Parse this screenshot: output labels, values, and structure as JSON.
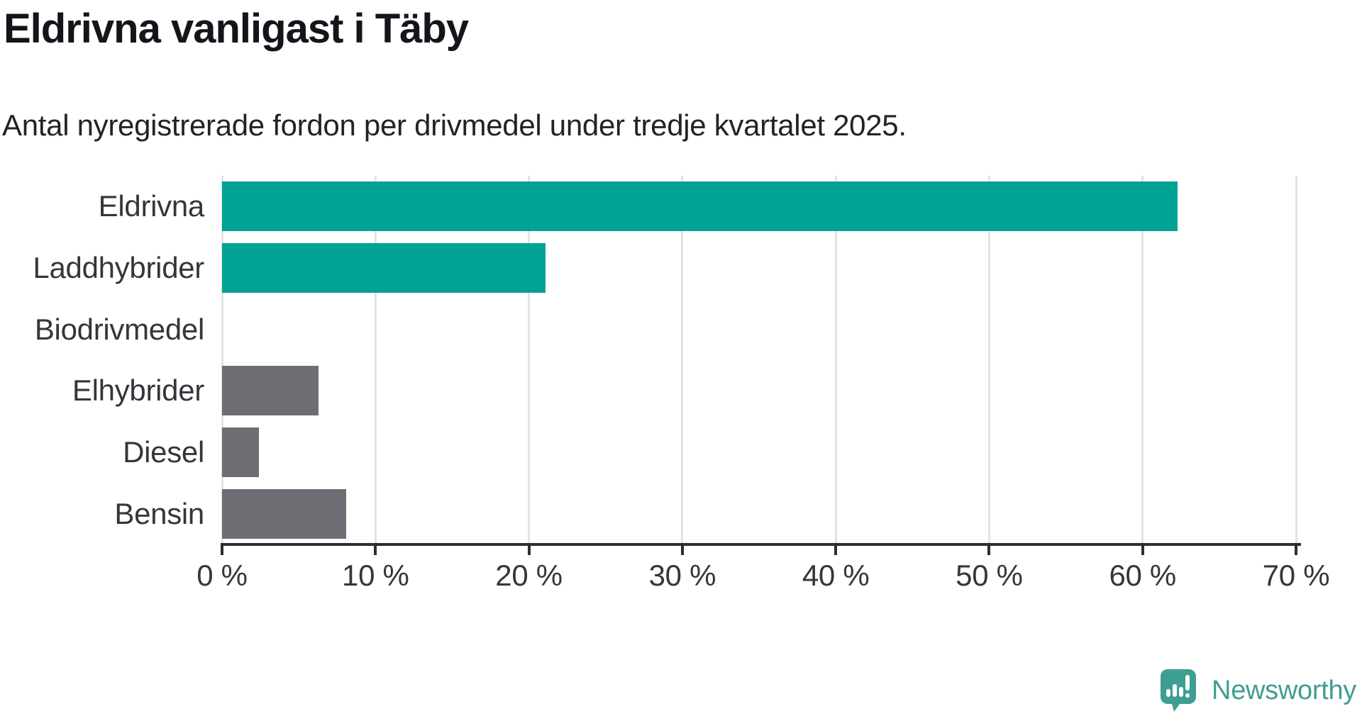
{
  "header": {
    "title": "Eldrivna vanligast i Täby",
    "subtitle": "Antal nyregistrerade fordon per drivmedel under tredje kvartalet 2025."
  },
  "chart_data": {
    "type": "bar",
    "orientation": "horizontal",
    "title": "Eldrivna vanligast i Täby",
    "subtitle": "Antal nyregistrerade fordon per drivmedel under tredje kvartalet 2025.",
    "categories": [
      "Eldrivna",
      "Laddhybrider",
      "Biodrivmedel",
      "Elhybrider",
      "Diesel",
      "Bensin"
    ],
    "values": [
      62.3,
      21.1,
      0,
      6.3,
      2.4,
      8.1
    ],
    "unit": "%",
    "xlim": [
      0,
      70
    ],
    "x_ticks": [
      0,
      10,
      20,
      30,
      40,
      50,
      60,
      70
    ],
    "x_tick_labels": [
      "0 %",
      "10 %",
      "20 %",
      "30 %",
      "40 %",
      "50 %",
      "60 %",
      "70 %"
    ],
    "bar_colors": [
      "#00a296",
      "#00a296",
      "#6d6d73",
      "#6d6d73",
      "#6d6d73",
      "#6d6d73"
    ],
    "grid": true,
    "legend": "none"
  },
  "colors": {
    "accent_teal": "#00a296",
    "neutral_gray": "#6d6d73",
    "gridline": "#e4e4e4",
    "axis": "#2e2e2e",
    "logo_teal": "#3f9e92"
  },
  "branding": {
    "logo_text": "Newsworthy",
    "logo_icon": "newsworthy-speech-bubble-barchart-icon"
  }
}
